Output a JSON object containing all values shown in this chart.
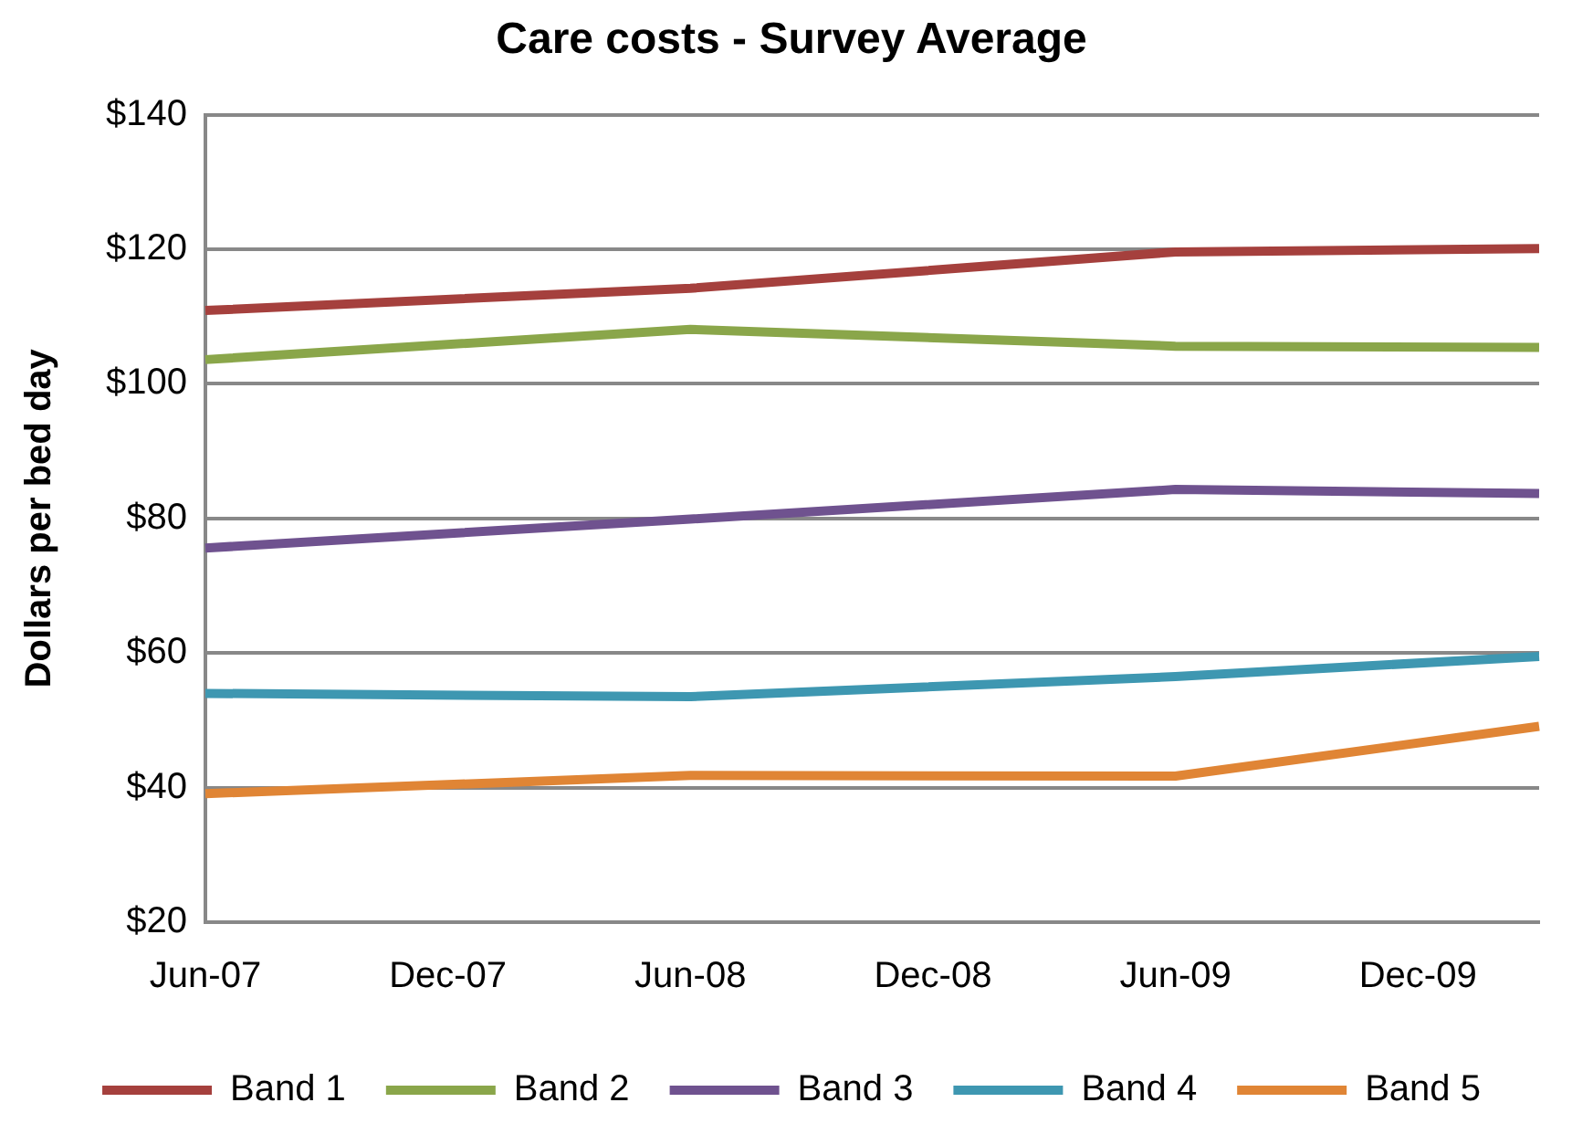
{
  "chart_data": {
    "type": "line",
    "title": "Care costs - Survey Average",
    "ylabel": "Dollars per bed day",
    "categories": [
      "Jun-07",
      null,
      "Dec-07",
      null,
      "Jun-08",
      null,
      "Dec-08",
      null,
      "Jun-09",
      null,
      "Dec-09",
      null
    ],
    "series": [
      {
        "name": "Band 1",
        "color": "#a5403d",
        "values": [
          110.9,
          null,
          null,
          null,
          114.2,
          null,
          null,
          null,
          119.6,
          null,
          null,
          120.1
        ]
      },
      {
        "name": "Band 2",
        "color": "#8aa64a",
        "values": [
          103.6,
          null,
          null,
          null,
          108.1,
          null,
          null,
          null,
          105.6,
          null,
          null,
          105.4
        ]
      },
      {
        "name": "Band 3",
        "color": "#6f528f",
        "values": [
          75.6,
          null,
          null,
          null,
          79.9,
          null,
          null,
          null,
          84.3,
          null,
          null,
          83.7
        ]
      },
      {
        "name": "Band 4",
        "color": "#3e97b1",
        "values": [
          54.0,
          null,
          null,
          null,
          53.5,
          null,
          null,
          null,
          56.5,
          null,
          null,
          59.5
        ]
      },
      {
        "name": "Band 5",
        "color": "#e08535",
        "values": [
          39.1,
          null,
          null,
          null,
          41.8,
          null,
          null,
          null,
          41.7,
          null,
          null,
          49.1
        ]
      }
    ],
    "ylim": [
      20,
      140
    ],
    "yticks": [
      {
        "value": 20,
        "label": "$20"
      },
      {
        "value": 40,
        "label": "$40"
      },
      {
        "value": 60,
        "label": "$60"
      },
      {
        "value": 80,
        "label": "$80"
      },
      {
        "value": 100,
        "label": "$100"
      },
      {
        "value": 120,
        "label": "$120"
      },
      {
        "value": 140,
        "label": "$140"
      }
    ],
    "grid": "y",
    "legend": "bottom",
    "marker": "none",
    "line_style": "solid"
  }
}
